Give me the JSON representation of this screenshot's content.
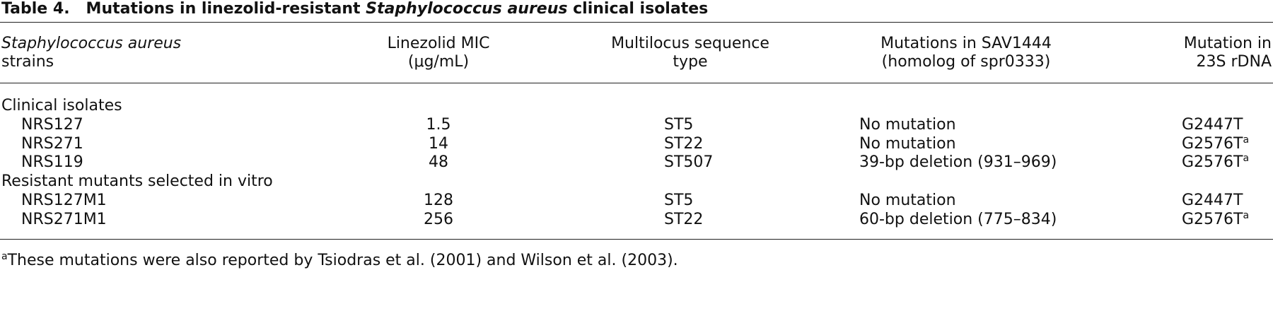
{
  "title": {
    "label": "Table 4.",
    "before": "Mutations in linezolid-resistant ",
    "italic": "Staphylococcus aureus",
    "after": " clinical isolates"
  },
  "header": [
    {
      "line1_italic": "Staphylococcus aureus",
      "line2": "strains"
    },
    {
      "line1": "Linezolid MIC",
      "line2": "(μg/mL)"
    },
    {
      "line1": "Multilocus sequence",
      "line2": "type"
    },
    {
      "line1": "Mutations in SAV1444",
      "line2": "(homolog of spr0333)"
    },
    {
      "line1": "Mutation in",
      "line2": "23S rDNA"
    }
  ],
  "groups": [
    {
      "name": "Clinical isolates",
      "rows": [
        {
          "strain": "NRS127",
          "mic": 1.5,
          "mlst": "ST5",
          "sav1444": "No mutation",
          "rdna": {
            "text": "G2447T"
          }
        },
        {
          "strain": "NRS271",
          "mic": 14,
          "mlst": "ST22",
          "sav1444": "No mutation",
          "rdna": {
            "text": "G2576T",
            "footnote": "a"
          }
        },
        {
          "strain": "NRS119",
          "mic": 48,
          "mlst": "ST507",
          "sav1444": "39-bp deletion (931–969)",
          "rdna": {
            "text": "G2576T",
            "footnote": "a"
          }
        }
      ]
    },
    {
      "name": "Resistant mutants selected in vitro",
      "rows": [
        {
          "strain": "NRS127M1",
          "mic": 128,
          "mlst": "ST5",
          "sav1444": "No mutation",
          "rdna": {
            "text": "G2447T"
          }
        },
        {
          "strain": "NRS271M1",
          "mic": 256,
          "mlst": "ST22",
          "sav1444": "60-bp deletion (775–834)",
          "rdna": {
            "text": "G2576T",
            "footnote": "a"
          }
        }
      ]
    }
  ],
  "footnote": {
    "mark": "a",
    "text": "These mutations were also reported by Tsiodras et al. (2001) and Wilson et al. (2003)."
  }
}
